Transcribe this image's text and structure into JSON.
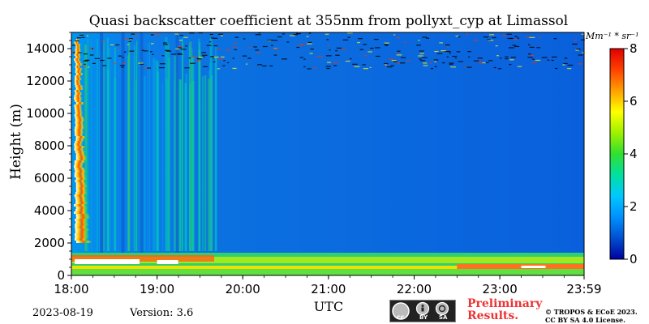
{
  "header": {
    "title": "Quasi backscatter coefficient at 355nm from pollyxt_cyp at Limassol"
  },
  "footer": {
    "date": "2023-08-19",
    "version": "Version: 3.6",
    "license_badge_labels": [
      "cc",
      "BY",
      "SA"
    ],
    "preliminary_line1": "Preliminary",
    "preliminary_line2": "Results.",
    "copyright_line1": "© TROPOS & ECoE 2023.",
    "copyright_line2": "CC BY SA 4.0 License."
  },
  "chart_data": {
    "type": "heatmap",
    "title": "Quasi backscatter coefficient at 355nm from pollyxt_cyp at Limassol",
    "xlabel": "UTC",
    "ylabel": "Height (m)",
    "x_range": [
      "18:00",
      "23:59"
    ],
    "x_ticks": [
      "18:00",
      "19:00",
      "20:00",
      "21:00",
      "22:00",
      "23:00",
      "23:59"
    ],
    "y_range": [
      0,
      15000
    ],
    "y_ticks": [
      0,
      2000,
      4000,
      6000,
      8000,
      10000,
      12000,
      14000
    ],
    "colorbar": {
      "unit": "Mm⁻¹ * sr⁻¹",
      "range": [
        0,
        8
      ],
      "ticks": [
        0,
        2,
        4,
        6,
        8
      ],
      "colormap": [
        "#0000a0",
        "#0050d0",
        "#0090ff",
        "#00c8ff",
        "#00e0a0",
        "#30e030",
        "#a0f000",
        "#ffff00",
        "#ffa000",
        "#ff4000",
        "#e00000"
      ]
    },
    "features": {
      "aerosol_layer_top_m": 1400,
      "fill_value_color": "#ffffff"
    }
  }
}
